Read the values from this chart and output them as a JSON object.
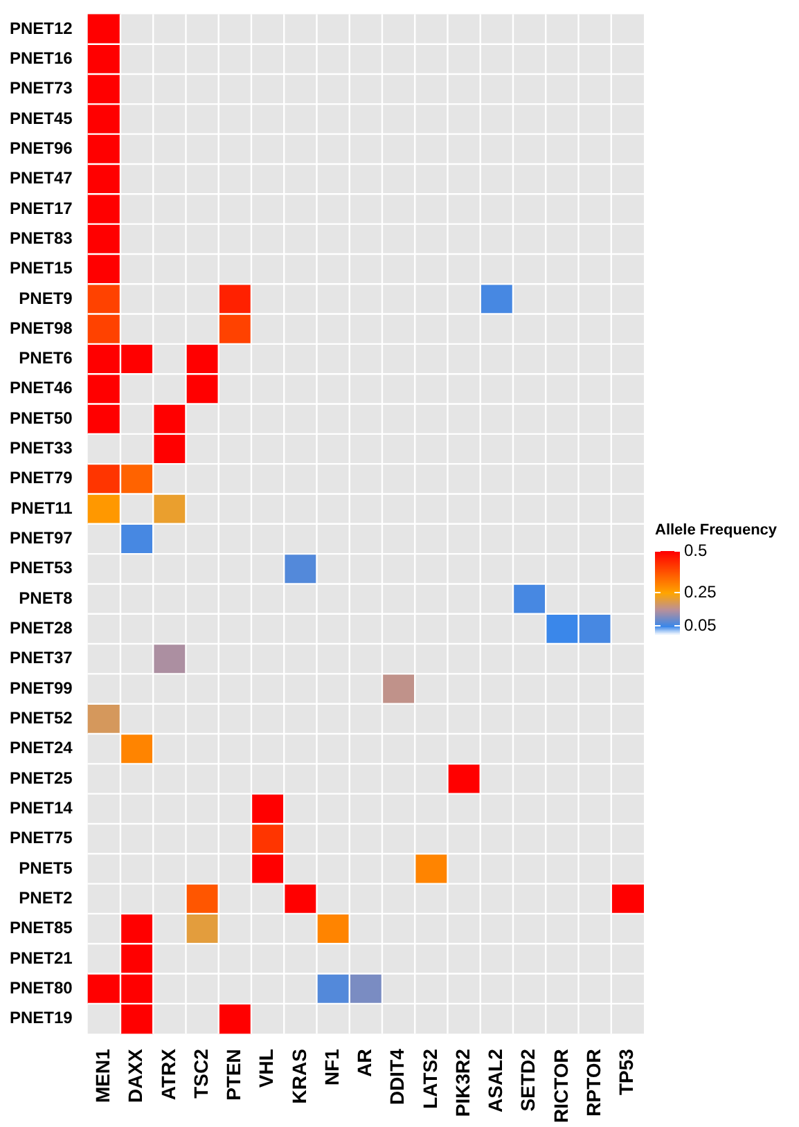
{
  "chart_data": {
    "type": "heatmap",
    "clabel": "Allele Frequency",
    "categories": [
      "MEN1",
      "DAXX",
      "ATRX",
      "TSC2",
      "PTEN",
      "VHL",
      "KRAS",
      "NF1",
      "AR",
      "DDIT4",
      "LATS2",
      "PIK3R2",
      "ASAL2",
      "SETD2",
      "RICTOR",
      "RPTOR",
      "TP53"
    ],
    "y_categories": [
      "PNET12",
      "PNET16",
      "PNET73",
      "PNET45",
      "PNET96",
      "PNET47",
      "PNET17",
      "PNET83",
      "PNET15",
      "PNET9",
      "PNET98",
      "PNET6",
      "PNET46",
      "PNET50",
      "PNET33",
      "PNET79",
      "PNET11",
      "PNET97",
      "PNET53",
      "PNET8",
      "PNET28",
      "PNET37",
      "PNET99",
      "PNET52",
      "PNET24",
      "PNET25",
      "PNET14",
      "PNET75",
      "PNET5",
      "PNET2",
      "PNET85",
      "PNET21",
      "PNET80",
      "PNET19"
    ],
    "cells": [
      [
        0.5,
        null,
        null,
        null,
        null,
        null,
        null,
        null,
        null,
        null,
        null,
        null,
        null,
        null,
        null,
        null,
        null
      ],
      [
        0.5,
        null,
        null,
        null,
        null,
        null,
        null,
        null,
        null,
        null,
        null,
        null,
        null,
        null,
        null,
        null,
        null
      ],
      [
        0.5,
        null,
        null,
        null,
        null,
        null,
        null,
        null,
        null,
        null,
        null,
        null,
        null,
        null,
        null,
        null,
        null
      ],
      [
        0.5,
        null,
        null,
        null,
        null,
        null,
        null,
        null,
        null,
        null,
        null,
        null,
        null,
        null,
        null,
        null,
        null
      ],
      [
        0.5,
        null,
        null,
        null,
        null,
        null,
        null,
        null,
        null,
        null,
        null,
        null,
        null,
        null,
        null,
        null,
        null
      ],
      [
        0.5,
        null,
        null,
        null,
        null,
        null,
        null,
        null,
        null,
        null,
        null,
        null,
        null,
        null,
        null,
        null,
        null
      ],
      [
        0.5,
        null,
        null,
        null,
        null,
        null,
        null,
        null,
        null,
        null,
        null,
        null,
        null,
        null,
        null,
        null,
        null
      ],
      [
        0.5,
        null,
        null,
        null,
        null,
        null,
        null,
        null,
        null,
        null,
        null,
        null,
        null,
        null,
        null,
        null,
        null
      ],
      [
        0.5,
        null,
        null,
        null,
        null,
        null,
        null,
        null,
        null,
        null,
        null,
        null,
        null,
        null,
        null,
        null,
        null
      ],
      [
        0.4,
        null,
        null,
        null,
        0.45,
        null,
        null,
        null,
        null,
        null,
        null,
        null,
        0.06,
        null,
        null,
        null,
        null
      ],
      [
        0.4,
        null,
        null,
        null,
        0.4,
        null,
        null,
        null,
        null,
        null,
        null,
        null,
        null,
        null,
        null,
        null,
        null
      ],
      [
        0.5,
        0.5,
        null,
        0.5,
        null,
        null,
        null,
        null,
        null,
        null,
        null,
        null,
        null,
        null,
        null,
        null,
        null
      ],
      [
        0.5,
        null,
        null,
        0.5,
        null,
        null,
        null,
        null,
        null,
        null,
        null,
        null,
        null,
        null,
        null,
        null,
        null
      ],
      [
        0.5,
        null,
        0.5,
        null,
        null,
        null,
        null,
        null,
        null,
        null,
        null,
        null,
        null,
        null,
        null,
        null,
        null
      ],
      [
        null,
        null,
        0.5,
        null,
        null,
        null,
        null,
        null,
        null,
        null,
        null,
        null,
        null,
        null,
        null,
        null,
        null
      ],
      [
        0.42,
        0.35,
        null,
        null,
        null,
        null,
        null,
        null,
        null,
        null,
        null,
        null,
        null,
        null,
        null,
        null,
        null
      ],
      [
        0.27,
        null,
        0.22,
        null,
        null,
        null,
        null,
        null,
        null,
        null,
        null,
        null,
        null,
        null,
        null,
        null,
        null
      ],
      [
        null,
        0.06,
        null,
        null,
        null,
        null,
        null,
        null,
        null,
        null,
        null,
        null,
        null,
        null,
        null,
        null,
        null
      ],
      [
        null,
        null,
        null,
        null,
        null,
        null,
        0.07,
        null,
        null,
        null,
        null,
        null,
        null,
        null,
        null,
        null,
        null
      ],
      [
        null,
        null,
        null,
        null,
        null,
        null,
        null,
        null,
        null,
        null,
        null,
        null,
        null,
        0.06,
        null,
        null,
        null
      ],
      [
        null,
        null,
        null,
        null,
        null,
        null,
        null,
        null,
        null,
        null,
        null,
        null,
        null,
        null,
        0.05,
        0.06,
        null
      ],
      [
        null,
        null,
        0.14,
        null,
        null,
        null,
        null,
        null,
        null,
        null,
        null,
        null,
        null,
        null,
        null,
        null,
        null
      ],
      [
        null,
        null,
        null,
        null,
        null,
        null,
        null,
        null,
        null,
        0.16,
        null,
        null,
        null,
        null,
        null,
        null,
        null
      ],
      [
        0.19,
        null,
        null,
        null,
        null,
        null,
        null,
        null,
        null,
        null,
        null,
        null,
        null,
        null,
        null,
        null,
        null
      ],
      [
        null,
        0.3,
        null,
        null,
        null,
        null,
        null,
        null,
        null,
        null,
        null,
        null,
        null,
        null,
        null,
        null,
        null
      ],
      [
        null,
        null,
        null,
        null,
        null,
        null,
        null,
        null,
        null,
        null,
        null,
        0.5,
        null,
        null,
        null,
        null,
        null
      ],
      [
        null,
        null,
        null,
        null,
        null,
        0.5,
        null,
        null,
        null,
        null,
        null,
        null,
        null,
        null,
        null,
        null,
        null
      ],
      [
        null,
        null,
        null,
        null,
        null,
        0.42,
        null,
        null,
        null,
        null,
        null,
        null,
        null,
        null,
        null,
        null,
        null
      ],
      [
        null,
        null,
        null,
        null,
        null,
        0.5,
        null,
        null,
        null,
        null,
        0.3,
        null,
        null,
        null,
        null,
        null,
        null
      ],
      [
        null,
        null,
        null,
        0.37,
        null,
        null,
        0.5,
        null,
        null,
        null,
        null,
        null,
        null,
        null,
        null,
        null,
        0.5
      ],
      [
        null,
        0.5,
        null,
        0.21,
        null,
        null,
        null,
        0.3,
        null,
        null,
        null,
        null,
        null,
        null,
        null,
        null,
        null
      ],
      [
        null,
        0.5,
        null,
        null,
        null,
        null,
        null,
        null,
        null,
        null,
        null,
        null,
        null,
        null,
        null,
        null,
        null
      ],
      [
        0.5,
        0.5,
        null,
        null,
        null,
        null,
        null,
        0.07,
        0.1,
        null,
        null,
        null,
        null,
        null,
        null,
        null,
        null
      ],
      [
        null,
        0.5,
        null,
        null,
        0.5,
        null,
        null,
        null,
        null,
        null,
        null,
        null,
        null,
        null,
        null,
        null,
        null
      ]
    ],
    "clim": [
      0,
      0.5
    ],
    "cticks": [
      0.05,
      0.25,
      0.5
    ]
  }
}
